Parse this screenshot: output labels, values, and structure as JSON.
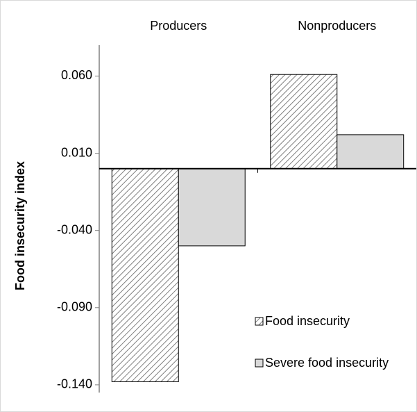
{
  "chart_data": {
    "type": "bar",
    "y_label": "Food insecurity index",
    "categories": [
      "Producers",
      "Nonproducers"
    ],
    "series": [
      {
        "name": "Food insecurity",
        "color": "#7f7f7f",
        "hatch": true,
        "values": [
          -0.138,
          0.061
        ]
      },
      {
        "name": "Severe food insecurity",
        "color": "#d9d9d9",
        "values": [
          -0.05,
          0.022
        ]
      }
    ],
    "ylim": [
      -0.145,
      0.08
    ],
    "yticks": [
      {
        "value": -0.14,
        "label": "-0.140"
      },
      {
        "value": -0.09,
        "label": "-0.090"
      },
      {
        "value": -0.04,
        "label": "-0.040"
      },
      {
        "value": 0.01,
        "label": "0.010"
      },
      {
        "value": 0.06,
        "label": "0.060"
      }
    ],
    "legend": "lower right"
  }
}
